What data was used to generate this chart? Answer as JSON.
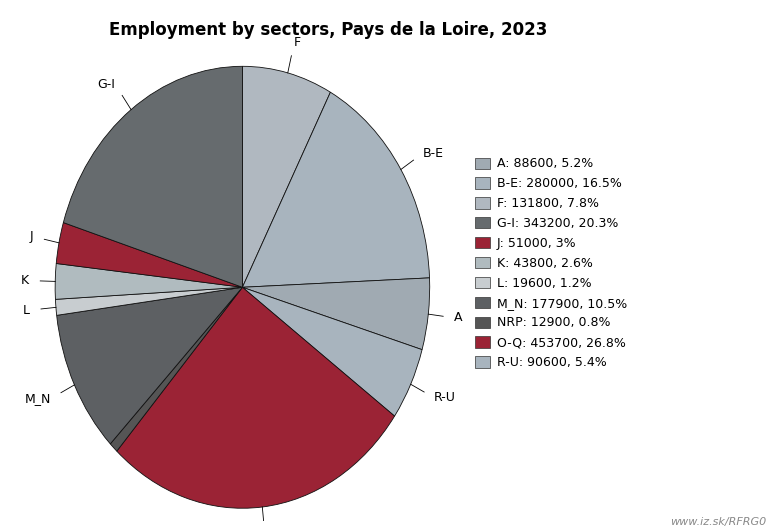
{
  "title": "Employment by sectors, Pays de la Loire, 2023",
  "ordered_labels": [
    "F",
    "B-E",
    "A",
    "R-U",
    "O-Q",
    "NRP",
    "M_N",
    "L",
    "K",
    "J",
    "G-I"
  ],
  "ordered_values": [
    131800,
    280000,
    88600,
    90600,
    453700,
    12900,
    177900,
    19600,
    43800,
    51000,
    343200
  ],
  "ordered_colors": [
    "#b0b8c0",
    "#a8b4be",
    "#a0aab2",
    "#a8b4be",
    "#9b2335",
    "#555555",
    "#5d6063",
    "#c8cdd0",
    "#b0bbbf",
    "#9b2335",
    "#666b6e"
  ],
  "legend_entries": [
    {
      "label": "A: 88600, 5.2%",
      "color": "#a0aab2"
    },
    {
      "label": "B-E: 280000, 16.5%",
      "color": "#a8b4be"
    },
    {
      "label": "F: 131800, 7.8%",
      "color": "#b0b8c0"
    },
    {
      "label": "G-I: 343200, 20.3%",
      "color": "#666b6e"
    },
    {
      "label": "J: 51000, 3%",
      "color": "#9b2335"
    },
    {
      "label": "K: 43800, 2.6%",
      "color": "#b0bbbf"
    },
    {
      "label": "L: 19600, 1.2%",
      "color": "#c8cdd0"
    },
    {
      "label": "M_N: 177900, 10.5%",
      "color": "#5d6063"
    },
    {
      "label": "NRP: 12900, 0.8%",
      "color": "#555555"
    },
    {
      "label": "O-Q: 453700, 26.8%",
      "color": "#9b2335"
    },
    {
      "label": "R-U: 90600, 5.4%",
      "color": "#a8b4be"
    }
  ],
  "watermark": "www.iz.sk/RFRG0",
  "background_color": "#ffffff",
  "title_fontsize": 12,
  "label_fontsize": 9,
  "legend_fontsize": 9
}
